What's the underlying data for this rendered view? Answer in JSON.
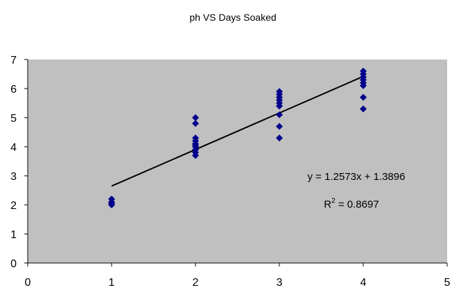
{
  "chart_data": {
    "type": "scatter",
    "title": "ph VS Days Soaked",
    "xlabel": "",
    "ylabel": "",
    "xlim": [
      0,
      5
    ],
    "ylim": [
      0,
      7
    ],
    "x_ticks": [
      "0",
      "1",
      "2",
      "3",
      "4",
      "5"
    ],
    "y_ticks": [
      "0",
      "1",
      "2",
      "3",
      "4",
      "5",
      "6",
      "7"
    ],
    "plot_background": "#c0c0c0",
    "marker_color": "#00008b",
    "grid": false,
    "legend": "none",
    "series": [
      {
        "x": [
          1,
          1,
          1,
          1,
          2,
          2,
          2,
          2,
          2,
          2,
          2,
          2,
          2,
          2,
          3,
          3,
          3,
          3,
          3,
          3,
          3,
          3,
          3,
          4,
          4,
          4,
          4,
          4,
          4,
          4,
          4
        ],
        "y": [
          2.0,
          2.05,
          2.1,
          2.2,
          3.7,
          3.8,
          3.9,
          4.0,
          4.05,
          4.1,
          4.2,
          4.3,
          4.8,
          5.0,
          4.3,
          4.7,
          5.1,
          5.4,
          5.5,
          5.6,
          5.7,
          5.8,
          5.9,
          5.3,
          5.7,
          6.1,
          6.2,
          6.3,
          6.4,
          6.5,
          6.6
        ]
      }
    ],
    "trendline": {
      "type": "linear",
      "slope": 1.2573,
      "intercept": 1.3896,
      "x_range": [
        1,
        4
      ],
      "equation_label": "y = 1.2573x + 1.3896",
      "r2_prefix": "R",
      "r2_superscript": "2",
      "r2_value": " = 0.8697"
    }
  }
}
